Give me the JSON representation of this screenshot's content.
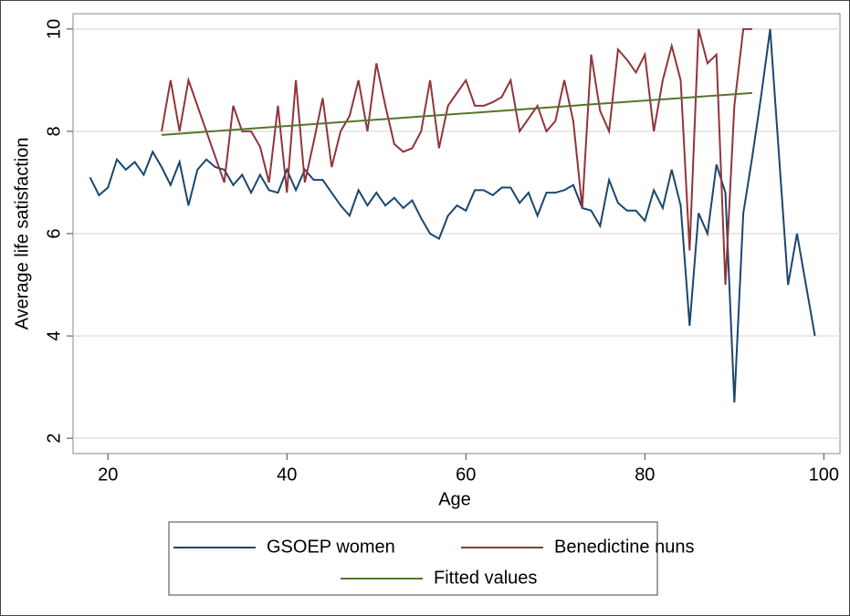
{
  "chart_data": {
    "type": "line",
    "x_label": "Age",
    "y_label": "Average life satisfaction",
    "xlim": [
      16.1,
      101.8
    ],
    "ylim": [
      1.7,
      10.3
    ],
    "xticks": [
      20,
      40,
      60,
      80,
      100
    ],
    "yticks": [
      2,
      4,
      6,
      8,
      10
    ],
    "grid": true,
    "series": [
      {
        "name": "GSOEP women",
        "color": "#1a476f",
        "x": [
          18,
          19,
          20,
          21,
          22,
          23,
          24,
          25,
          26,
          27,
          28,
          29,
          30,
          31,
          32,
          33,
          34,
          35,
          36,
          37,
          38,
          39,
          40,
          41,
          42,
          43,
          44,
          45,
          46,
          47,
          48,
          49,
          50,
          51,
          52,
          53,
          54,
          55,
          56,
          57,
          58,
          59,
          60,
          61,
          62,
          63,
          64,
          65,
          66,
          67,
          68,
          69,
          70,
          71,
          72,
          73,
          74,
          75,
          76,
          77,
          78,
          79,
          80,
          81,
          82,
          83,
          84,
          85,
          86,
          87,
          88,
          89,
          90,
          91,
          92,
          93,
          94,
          95,
          96,
          97,
          98,
          99
        ],
        "values": [
          7.1,
          6.75,
          6.9,
          7.45,
          7.25,
          7.4,
          7.15,
          7.6,
          7.3,
          6.95,
          7.4,
          6.55,
          7.25,
          7.45,
          7.3,
          7.25,
          6.95,
          7.15,
          6.8,
          7.15,
          6.85,
          6.8,
          7.25,
          6.85,
          7.25,
          7.05,
          7.05,
          6.8,
          6.55,
          6.35,
          6.85,
          6.55,
          6.8,
          6.55,
          6.7,
          6.5,
          6.65,
          6.3,
          6.0,
          5.9,
          6.35,
          6.55,
          6.45,
          6.85,
          6.85,
          6.75,
          6.9,
          6.9,
          6.6,
          6.8,
          6.35,
          6.8,
          6.8,
          6.85,
          6.95,
          6.5,
          6.45,
          6.15,
          7.05,
          6.6,
          6.45,
          6.45,
          6.25,
          6.85,
          6.5,
          7.25,
          6.55,
          4.2,
          6.4,
          6.0,
          7.35,
          6.8,
          2.7,
          6.4,
          7.5,
          8.7,
          10,
          7.5,
          5.0,
          6.0,
          5.0,
          4.0
        ]
      },
      {
        "name": "Benedictine nuns",
        "color": "#90353b",
        "x": [
          26,
          27,
          28,
          29,
          30,
          31,
          32,
          33,
          34,
          35,
          36,
          37,
          38,
          39,
          40,
          41,
          42,
          43,
          44,
          45,
          46,
          47,
          48,
          49,
          50,
          51,
          52,
          53,
          54,
          55,
          56,
          57,
          58,
          59,
          60,
          61,
          62,
          63,
          64,
          65,
          66,
          67,
          68,
          69,
          70,
          71,
          72,
          73,
          74,
          75,
          76,
          77,
          78,
          79,
          80,
          81,
          82,
          83,
          84,
          85,
          86,
          87,
          88,
          89,
          90,
          91,
          92
        ],
        "values": [
          8.0,
          9.0,
          8.0,
          9.0,
          8.5,
          8.0,
          7.5,
          7.0,
          8.5,
          8.0,
          8.0,
          7.7,
          7.0,
          8.5,
          6.8,
          9.0,
          7.0,
          7.8,
          8.65,
          7.3,
          8.0,
          8.3,
          9.0,
          8.0,
          9.33,
          8.5,
          7.75,
          7.6,
          7.67,
          8.0,
          9.0,
          7.67,
          8.5,
          8.75,
          9.0,
          8.5,
          8.5,
          8.57,
          8.67,
          9.0,
          8.0,
          8.25,
          8.5,
          8.0,
          8.2,
          9.0,
          8.2,
          6.5,
          9.5,
          8.4,
          8.0,
          9.6,
          9.4,
          9.15,
          9.5,
          8.0,
          9.0,
          9.67,
          9.0,
          5.67,
          10,
          9.33,
          9.5,
          5.0,
          8.5,
          10,
          10
        ]
      },
      {
        "name": "Fitted values",
        "color": "#55752f",
        "x": [
          26,
          92
        ],
        "values": [
          7.93,
          8.75
        ]
      }
    ]
  }
}
